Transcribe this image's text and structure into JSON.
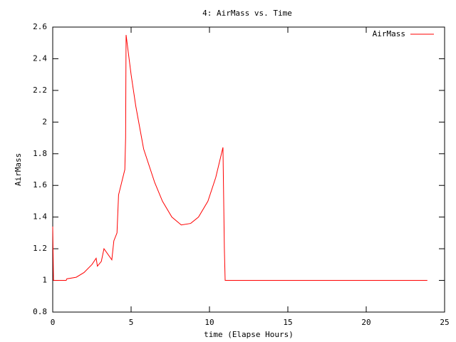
{
  "chart_data": {
    "type": "line",
    "title": "4: AirMass vs. Time",
    "x_label": "time (Elapse Hours)",
    "y_label": "AirMass",
    "xlim": [
      0,
      25
    ],
    "xticks": [
      0,
      5,
      10,
      15,
      20,
      25
    ],
    "ylim": [
      0.8,
      2.6
    ],
    "yticks": [
      0.8,
      1,
      1.2,
      1.4,
      1.6,
      1.8,
      2,
      2.2,
      2.4,
      2.6
    ],
    "legend": "top-right",
    "series": [
      {
        "name": "AirMass",
        "color": "#ff0000",
        "x": [
          0,
          0.05,
          0.86,
          0.9,
          1.5,
          2,
          2.5,
          2.77,
          2.85,
          3.1,
          3.27,
          3.77,
          3.9,
          4.1,
          4.2,
          4.6,
          4.65,
          4.68,
          5.0,
          5.3,
          5.8,
          6.5,
          7,
          7.6,
          8.2,
          8.8,
          9.3,
          9.9,
          10.4,
          10.86,
          10.95,
          11.0,
          23.9
        ],
        "values": [
          1.34,
          1.0,
          1.0,
          1.01,
          1.02,
          1.05,
          1.1,
          1.14,
          1.09,
          1.12,
          1.2,
          1.13,
          1.25,
          1.3,
          1.54,
          1.7,
          1.9,
          2.55,
          2.3,
          2.1,
          1.83,
          1.62,
          1.5,
          1.4,
          1.35,
          1.36,
          1.4,
          1.5,
          1.65,
          1.84,
          1.2,
          1.0,
          1.0
        ]
      }
    ]
  }
}
